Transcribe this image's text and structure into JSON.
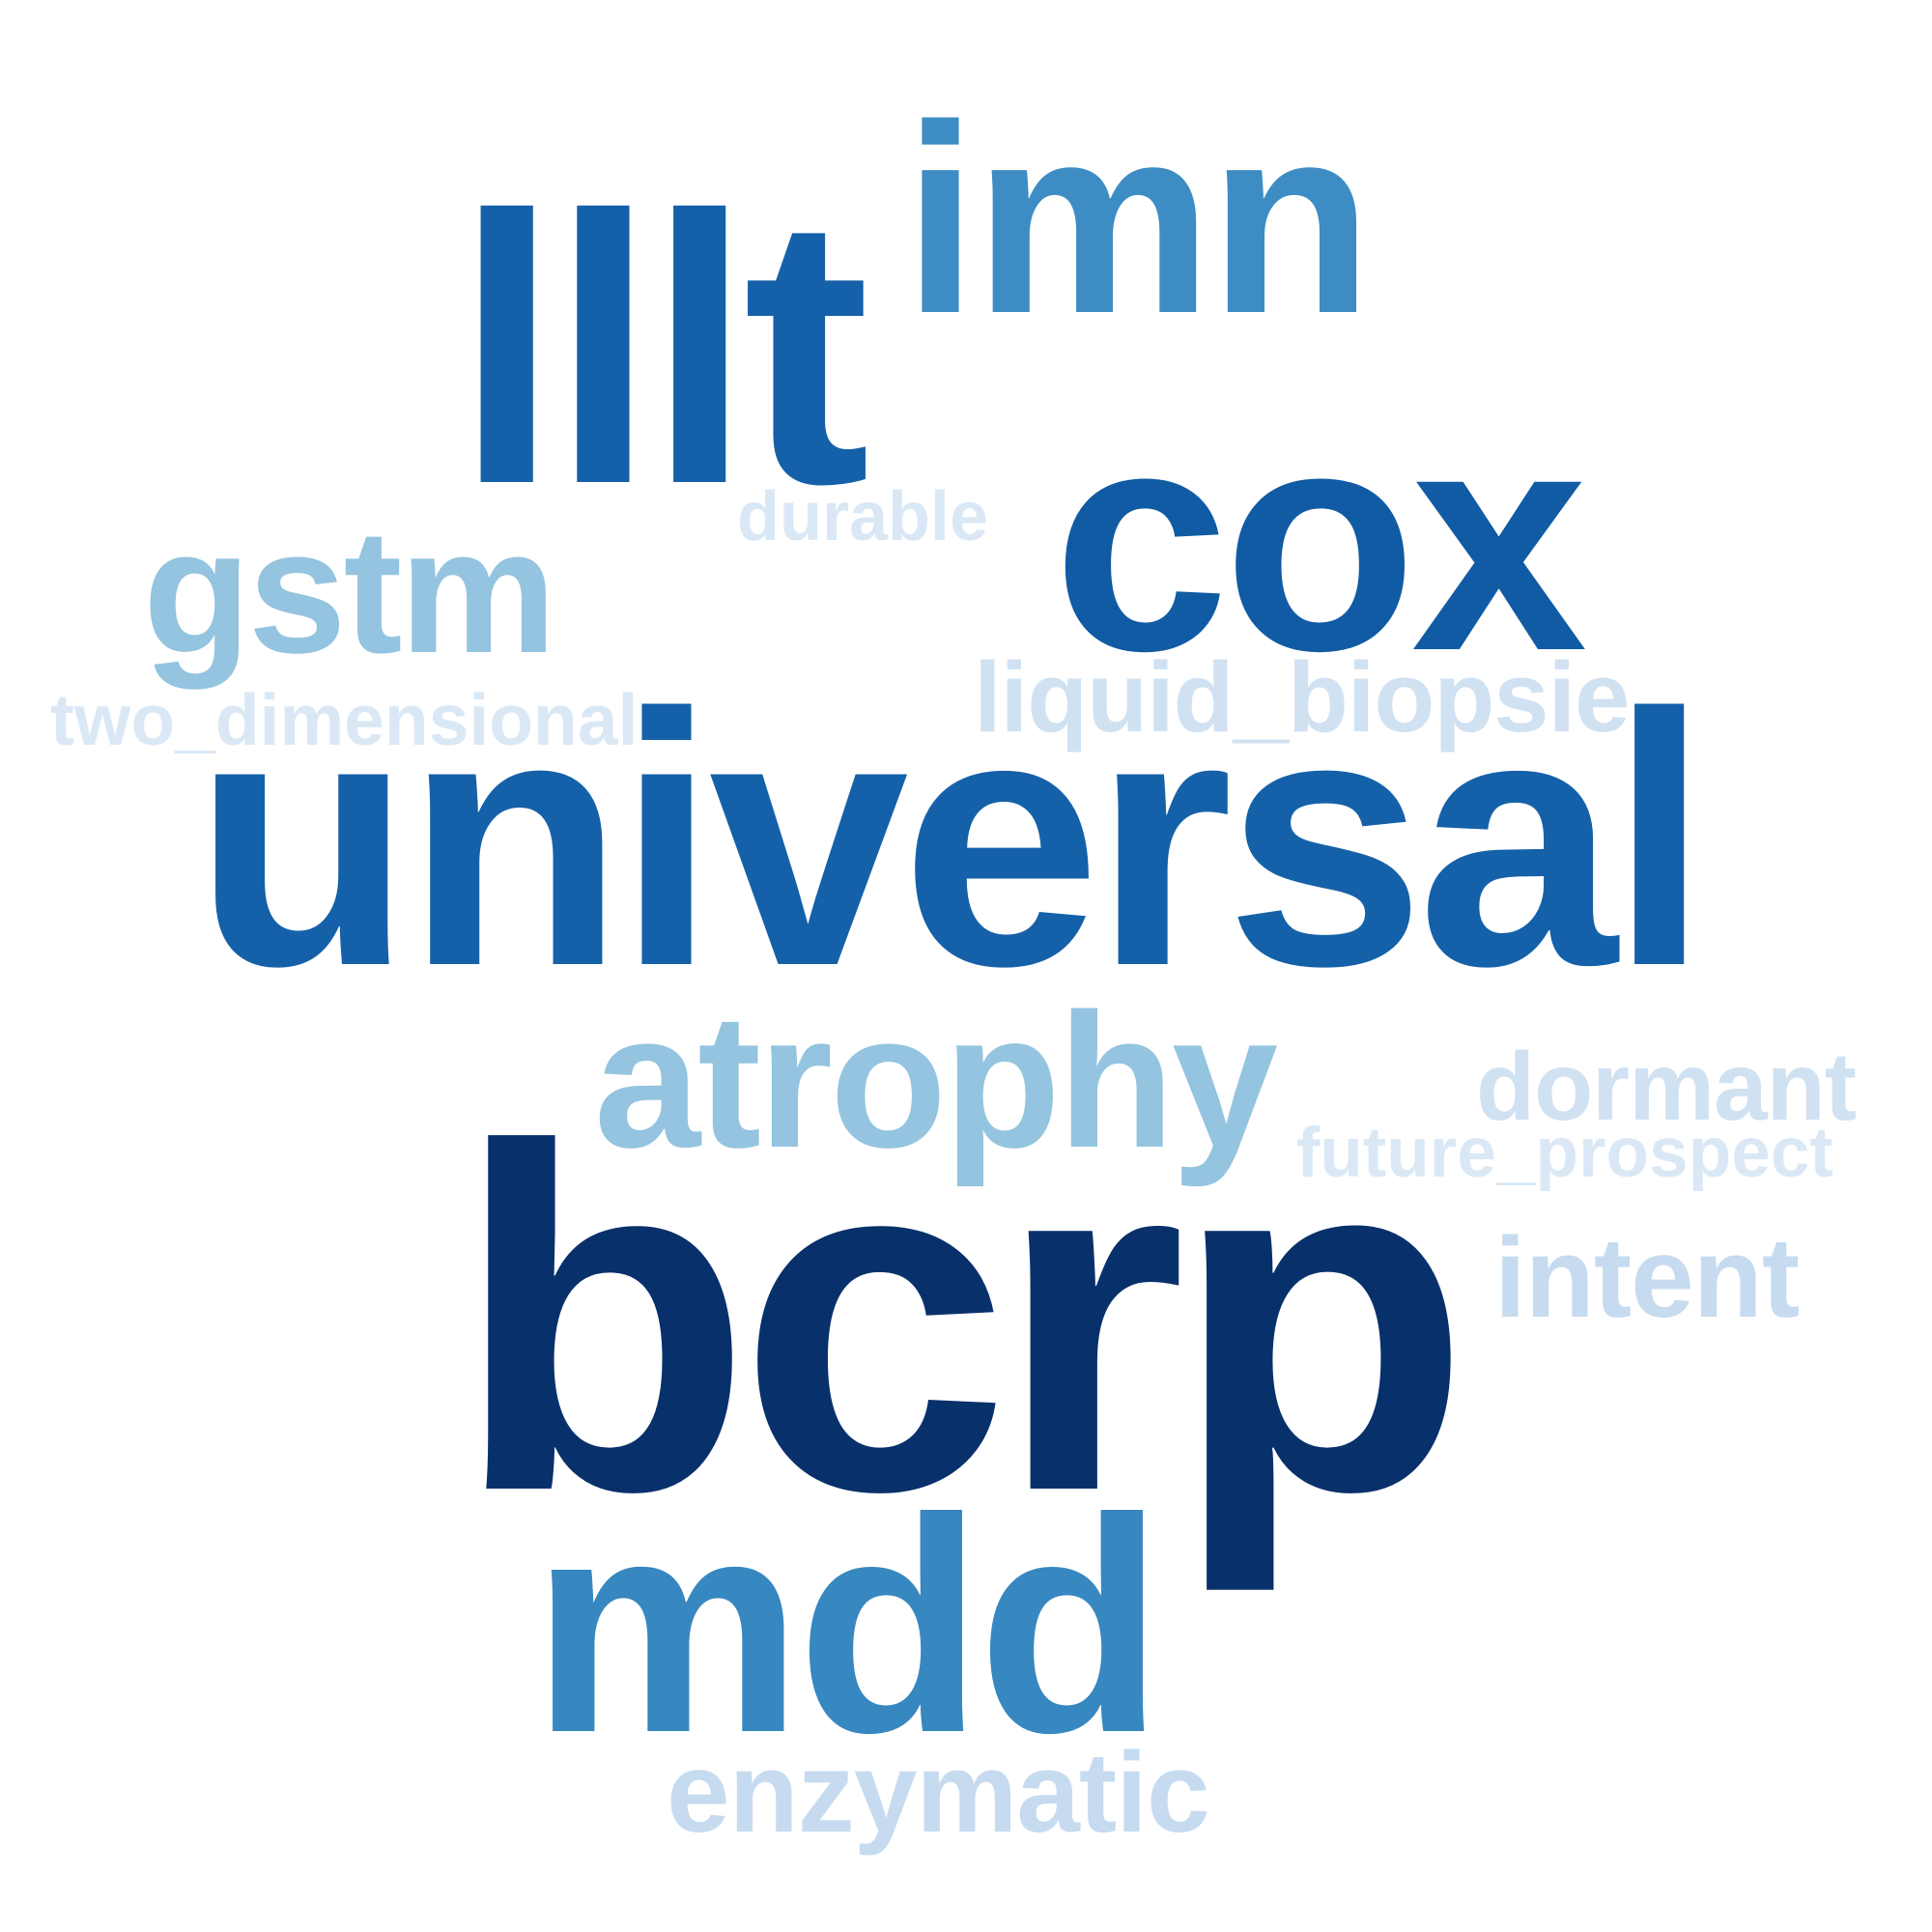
{
  "words": [
    {
      "key": "bcrp",
      "text": "bcrp",
      "color": "#08306b"
    },
    {
      "key": "universal",
      "text": "universal",
      "color": "#1561a9"
    },
    {
      "key": "lllt",
      "text": "lllt",
      "color": "#1561a9"
    },
    {
      "key": "cox",
      "text": "cox",
      "color": "#105ba4"
    },
    {
      "key": "mdd",
      "text": "mdd",
      "color": "#3787c0"
    },
    {
      "key": "imn",
      "text": "imn",
      "color": "#3d8dc4"
    },
    {
      "key": "atrophy",
      "text": "atrophy",
      "color": "#94c4df"
    },
    {
      "key": "gstm",
      "text": "gstm",
      "color": "#94c4df"
    },
    {
      "key": "intent",
      "text": "intent",
      "color": "#c6dbef"
    },
    {
      "key": "enzymatic",
      "text": "enzymatic",
      "color": "#c6dbef"
    },
    {
      "key": "dormant",
      "text": "dormant",
      "color": "#d0e1f2"
    },
    {
      "key": "liquid_biopsie",
      "text": "liquid_biopsie",
      "color": "#d0e1f2"
    },
    {
      "key": "future_prospect",
      "text": "future_prospect",
      "color": "#dae8f6"
    },
    {
      "key": "two_dimensional",
      "text": "two_dimensional",
      "color": "#dae8f6"
    },
    {
      "key": "durable",
      "text": "durable",
      "color": "#dae8f6"
    }
  ]
}
